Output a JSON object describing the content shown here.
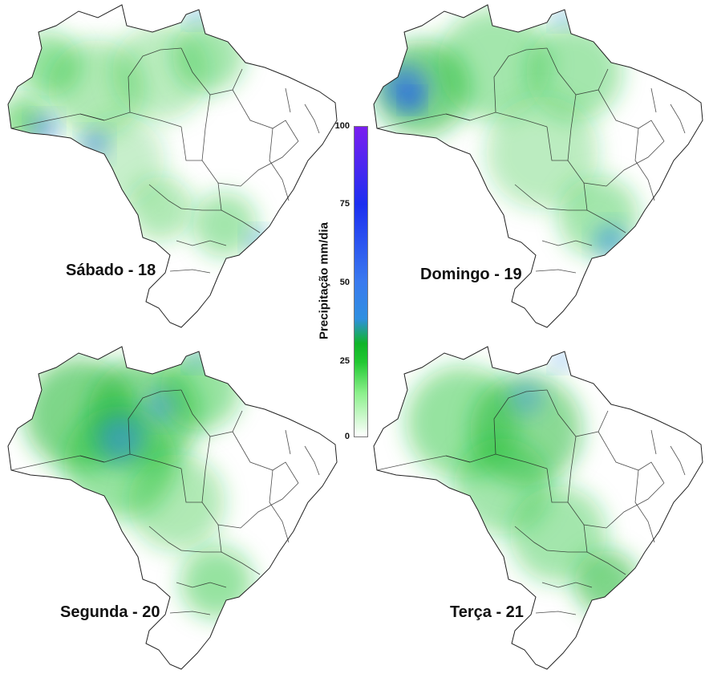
{
  "panels": [
    {
      "id": "sabado",
      "title": "Sábado - 18",
      "rain_pattern": "moderate"
    },
    {
      "id": "domingo",
      "title": "Domingo - 19",
      "rain_pattern": "west-heavy"
    },
    {
      "id": "segunda",
      "title": "Segunda - 20",
      "rain_pattern": "amazon-heavy"
    },
    {
      "id": "terca",
      "title": "Terça - 21",
      "rain_pattern": "central-heavy"
    }
  ],
  "colorbar": {
    "label": "Precipitação mm/dia",
    "ticks": [
      "0",
      "25",
      "50",
      "75",
      "100"
    ],
    "range": [
      0,
      100
    ],
    "colors": {
      "low": "#ffffff",
      "mid": "#10b428",
      "high_blue": "#2f8fe0",
      "max": "#7a1ff0"
    }
  },
  "map": {
    "border_color": "#222222",
    "land_color": "#ffffff"
  }
}
